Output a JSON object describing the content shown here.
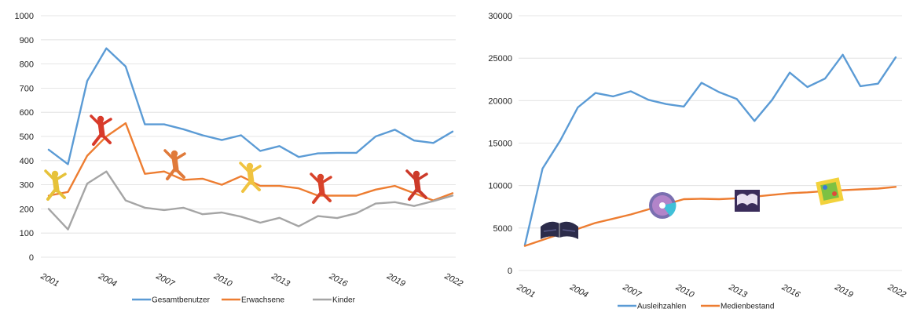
{
  "chart_data": [
    {
      "type": "line",
      "title": "",
      "xlabel": "",
      "ylabel": "",
      "ylim": [
        0,
        1000
      ],
      "yticks": [
        0,
        100,
        200,
        300,
        400,
        500,
        600,
        700,
        800,
        900,
        1000
      ],
      "xtick_labels": [
        "2001",
        "2004",
        "2007",
        "2010",
        "2013",
        "2016",
        "2019",
        "2022"
      ],
      "x": [
        2001,
        2002,
        2003,
        2004,
        2005,
        2006,
        2007,
        2008,
        2009,
        2010,
        2011,
        2012,
        2013,
        2014,
        2015,
        2016,
        2017,
        2018,
        2019,
        2020,
        2021,
        2022
      ],
      "grid": "horizontal",
      "legend_position": "bottom",
      "series": [
        {
          "name": "Gesamtbenutzer",
          "color": "#5b9bd5",
          "values": [
            445,
            385,
            730,
            865,
            790,
            550,
            550,
            530,
            505,
            485,
            505,
            440,
            460,
            415,
            430,
            432,
            432,
            500,
            528,
            483,
            473,
            520
          ]
        },
        {
          "name": "Erwachsene",
          "color": "#ed7d31",
          "values": [
            255,
            270,
            420,
            500,
            555,
            345,
            355,
            320,
            325,
            300,
            335,
            295,
            295,
            285,
            255,
            255,
            255,
            280,
            295,
            265,
            235,
            265
          ]
        },
        {
          "name": "Kinder",
          "color": "#a5a5a5",
          "values": [
            200,
            115,
            305,
            355,
            235,
            205,
            195,
            205,
            178,
            185,
            168,
            143,
            163,
            128,
            170,
            162,
            182,
            222,
            228,
            212,
            232,
            255
          ]
        }
      ],
      "decorations": [
        "jumping-person-icon",
        "jumping-person-icon",
        "jumping-person-icon",
        "jumping-person-icon",
        "jumping-person-icon",
        "jumping-person-icon"
      ]
    },
    {
      "type": "line",
      "title": "",
      "xlabel": "",
      "ylabel": "",
      "ylim": [
        0,
        30000
      ],
      "yticks": [
        0,
        5000,
        10000,
        15000,
        20000,
        25000,
        30000
      ],
      "xtick_labels": [
        "2001",
        "2004",
        "2007",
        "2010",
        "2013",
        "2016",
        "2019",
        "2022"
      ],
      "x": [
        2001,
        2002,
        2003,
        2004,
        2005,
        2006,
        2007,
        2008,
        2009,
        2010,
        2011,
        2012,
        2013,
        2014,
        2015,
        2016,
        2017,
        2018,
        2019,
        2020,
        2021,
        2022
      ],
      "grid": "horizontal",
      "legend_position": "bottom",
      "series": [
        {
          "name": "Ausleihzahlen",
          "color": "#5b9bd5",
          "values": [
            3000,
            12000,
            15300,
            19200,
            20900,
            20500,
            21100,
            20100,
            19600,
            19300,
            22100,
            21000,
            20200,
            17600,
            20100,
            23300,
            21600,
            22600,
            25400,
            21700,
            22000,
            25100
          ]
        },
        {
          "name": "Medienbestand",
          "color": "#ed7d31",
          "values": [
            2900,
            3600,
            4300,
            4900,
            5600,
            6100,
            6600,
            7200,
            7800,
            8400,
            8450,
            8400,
            8500,
            8700,
            8900,
            9100,
            9200,
            9350,
            9450,
            9550,
            9650,
            9850
          ]
        }
      ],
      "decorations": [
        "open-book-icon",
        "cd-disc-icon",
        "book-icon",
        "board-game-icon"
      ]
    }
  ]
}
